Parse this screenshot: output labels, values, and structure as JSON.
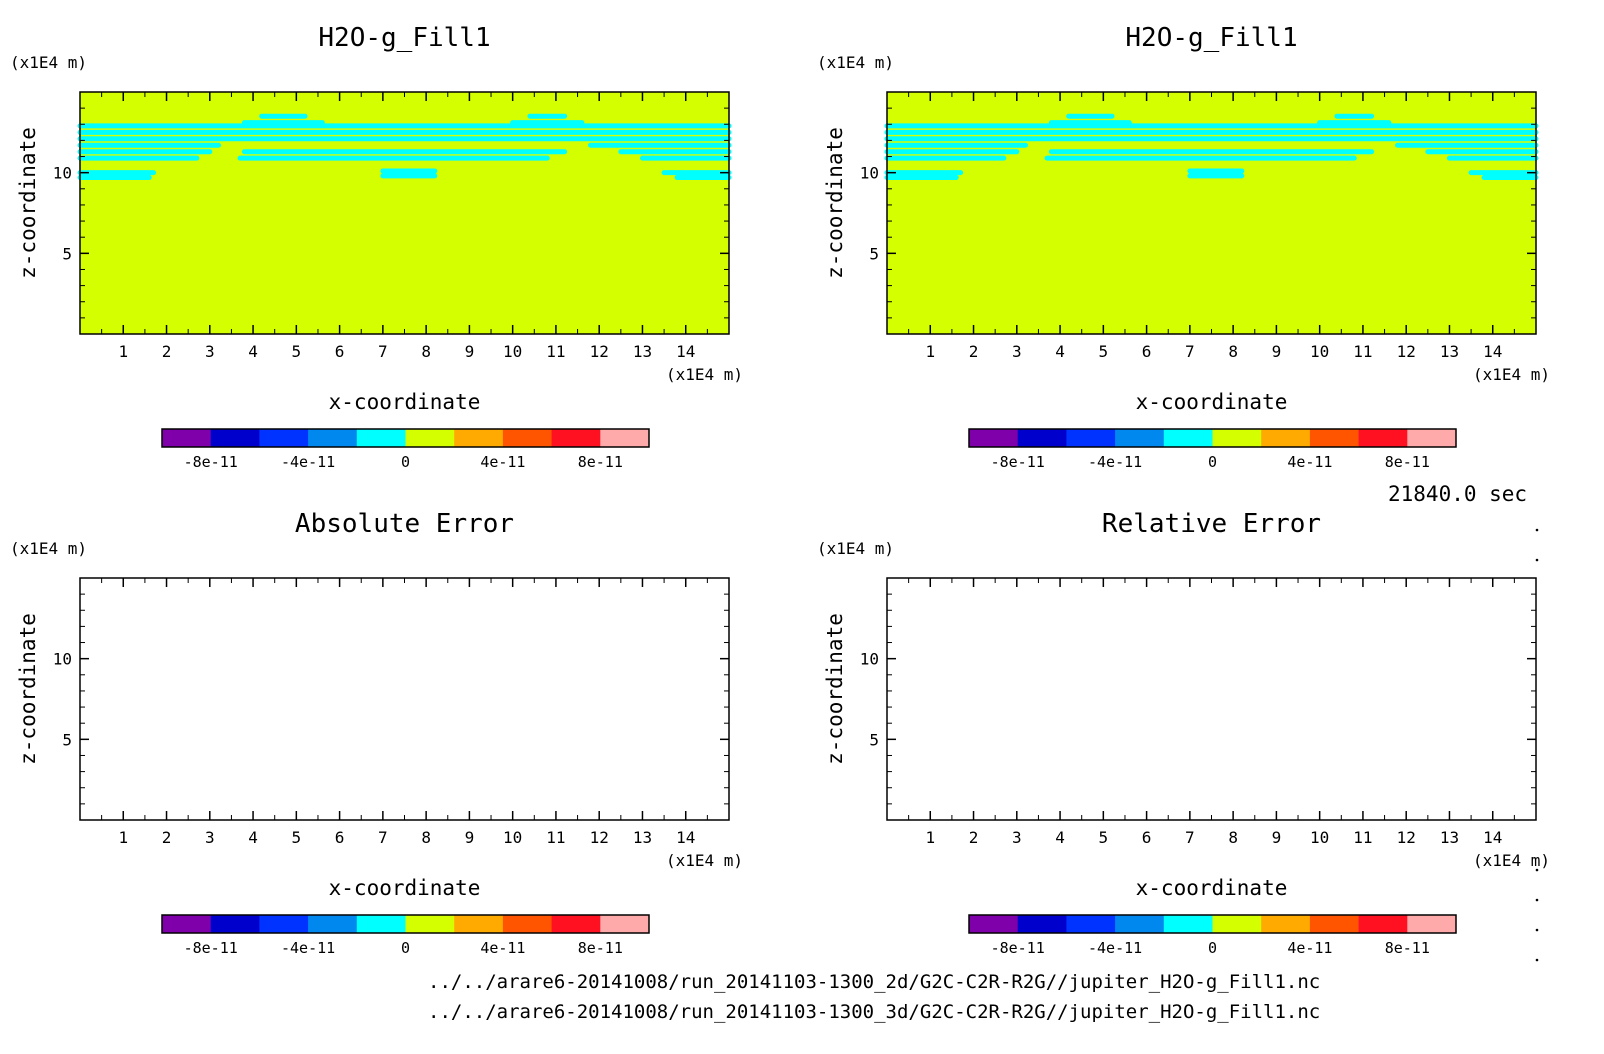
{
  "chart_data": [
    {
      "type": "heatmap",
      "title": "H2O-g_Fill1",
      "xlabel": "x-coordinate",
      "ylabel": "z-coordinate",
      "x_unit": "(x1E4 m)",
      "y_unit": "(x1E4 m)",
      "xlim": [
        0,
        15
      ],
      "ylim": [
        0,
        15
      ],
      "xticks": [
        1,
        2,
        3,
        4,
        5,
        6,
        7,
        8,
        9,
        10,
        11,
        12,
        13,
        14
      ],
      "yticks": [
        5,
        10
      ],
      "background_level": "0 to 2e-11",
      "background_color": "#d4ff00",
      "contour_color": "#00ffff",
      "contour_lines": [
        {
          "z": 12.9,
          "x": [
            0,
            15
          ]
        },
        {
          "z": 12.5,
          "x": [
            0,
            15
          ]
        },
        {
          "z": 12.1,
          "x": [
            0,
            15
          ]
        },
        {
          "z": 11.7,
          "x": [
            0,
            3.2
          ]
        },
        {
          "z": 11.7,
          "x": [
            11.8,
            15
          ]
        },
        {
          "z": 11.3,
          "x": [
            0,
            3.0
          ]
        },
        {
          "z": 11.3,
          "x": [
            3.8,
            11.2
          ]
        },
        {
          "z": 11.3,
          "x": [
            12.5,
            15
          ]
        },
        {
          "z": 10.9,
          "x": [
            0,
            2.7
          ]
        },
        {
          "z": 10.9,
          "x": [
            3.7,
            10.8
          ]
        },
        {
          "z": 10.9,
          "x": [
            13.0,
            15
          ]
        },
        {
          "z": 10.0,
          "x": [
            0,
            1.7
          ]
        },
        {
          "z": 10.0,
          "x": [
            13.5,
            15
          ]
        },
        {
          "z": 9.7,
          "x": [
            0,
            1.6
          ]
        },
        {
          "z": 9.7,
          "x": [
            13.8,
            15
          ]
        },
        {
          "z": 10.1,
          "x": [
            7.0,
            8.2
          ]
        },
        {
          "z": 9.8,
          "x": [
            7.0,
            8.2
          ]
        },
        {
          "z": 13.5,
          "x": [
            4.2,
            5.2
          ]
        },
        {
          "z": 13.1,
          "x": [
            3.8,
            5.6
          ]
        },
        {
          "z": 13.5,
          "x": [
            10.4,
            11.2
          ]
        },
        {
          "z": 13.1,
          "x": [
            10.0,
            11.6
          ]
        }
      ]
    },
    {
      "type": "heatmap",
      "title": "H2O-g_Fill1",
      "xlabel": "x-coordinate",
      "ylabel": "z-coordinate",
      "x_unit": "(x1E4 m)",
      "y_unit": "(x1E4 m)",
      "xlim": [
        0,
        15
      ],
      "ylim": [
        0,
        15
      ],
      "xticks": [
        1,
        2,
        3,
        4,
        5,
        6,
        7,
        8,
        9,
        10,
        11,
        12,
        13,
        14
      ],
      "yticks": [
        5,
        10
      ],
      "background_level": "0 to 2e-11",
      "background_color": "#d4ff00",
      "contour_color": "#00ffff",
      "same_as_panel": 0
    },
    {
      "type": "heatmap",
      "title": "Absolute Error",
      "xlabel": "x-coordinate",
      "ylabel": "z-coordinate",
      "x_unit": "(x1E4 m)",
      "y_unit": "(x1E4 m)",
      "xlim": [
        0,
        15
      ],
      "ylim": [
        0,
        15
      ],
      "xticks": [
        1,
        2,
        3,
        4,
        5,
        6,
        7,
        8,
        9,
        10,
        11,
        12,
        13,
        14
      ],
      "yticks": [
        5,
        10
      ],
      "empty": true
    },
    {
      "type": "heatmap",
      "title": "Relative Error",
      "xlabel": "x-coordinate",
      "ylabel": "z-coordinate",
      "x_unit": "(x1E4 m)",
      "y_unit": "(x1E4 m)",
      "xlim": [
        0,
        15
      ],
      "ylim": [
        0,
        15
      ],
      "xticks": [
        1,
        2,
        3,
        4,
        5,
        6,
        7,
        8,
        9,
        10,
        11,
        12,
        13,
        14
      ],
      "yticks": [
        5,
        10
      ],
      "empty": true
    }
  ],
  "colorbar": {
    "range": [
      -1e-10,
      1e-10
    ],
    "colors": [
      "#7f00aa",
      "#0000cc",
      "#0033ff",
      "#0088ee",
      "#00ffff",
      "#d4ff00",
      "#ffaa00",
      "#ff5500",
      "#ff1122",
      "#ffaaaa"
    ],
    "tick_values": [
      -8e-11,
      -4e-11,
      0,
      4e-11,
      8e-11
    ],
    "tick_labels": [
      "-8e-11",
      "-4e-11",
      "0",
      "4e-11",
      "8e-11"
    ]
  },
  "time_label": "21840.0 sec",
  "file_paths": [
    "../../arare6-20141008/run_20141103-1300_2d/G2C-C2R-R2G//jupiter_H2O-g_Fill1.nc",
    "../../arare6-20141008/run_20141103-1300_3d/G2C-C2R-R2G//jupiter_H2O-g_Fill1.nc"
  ]
}
